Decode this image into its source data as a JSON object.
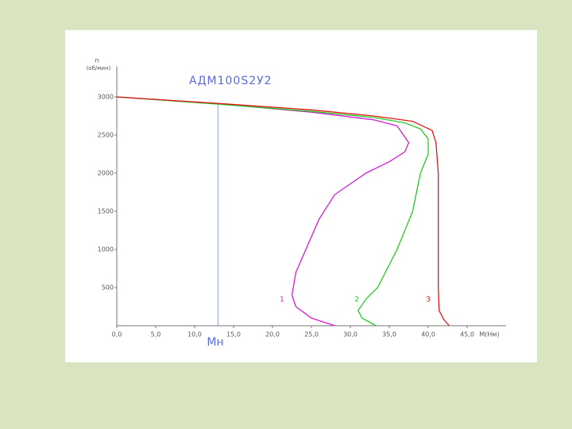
{
  "chart_data": {
    "type": "line",
    "title": "АДМ100S2У2",
    "ylabel": "n",
    "ylabel_unit": "(об/мин)",
    "xlabel": "M(Нм)",
    "xlim": [
      0,
      50
    ],
    "ylim": [
      0,
      3400
    ],
    "xticks": [
      {
        "value": 0,
        "label": "0,0"
      },
      {
        "value": 5,
        "label": "5,0"
      },
      {
        "value": 10,
        "label": "10,0"
      },
      {
        "value": 15,
        "label": "15,0"
      },
      {
        "value": 20,
        "label": "20,0"
      },
      {
        "value": 25,
        "label": "25,0"
      },
      {
        "value": 30,
        "label": "30,0"
      },
      {
        "value": 35,
        "label": "35,0"
      },
      {
        "value": 40,
        "label": "40,0"
      },
      {
        "value": 45,
        "label": "45,0"
      }
    ],
    "yticks": [
      500,
      1000,
      1500,
      2000,
      2500,
      3000
    ],
    "annotations": [
      {
        "text": "Мн",
        "x": 13
      }
    ],
    "series": [
      {
        "name": "1",
        "color": "#d21ed2",
        "x": [
          0,
          13,
          25,
          33,
          36,
          37.5,
          37,
          35,
          32,
          28,
          26,
          24.5,
          23,
          22.5,
          23,
          25,
          28
        ],
        "values": [
          3000,
          2910,
          2800,
          2700,
          2620,
          2400,
          2280,
          2150,
          2000,
          1720,
          1400,
          1050,
          700,
          400,
          250,
          100,
          0
        ]
      },
      {
        "name": "2",
        "color": "#22cc22",
        "x": [
          0,
          13,
          25,
          33,
          37,
          39,
          40,
          40,
          39,
          38,
          36,
          33.5,
          32,
          31,
          31.5,
          33.3
        ],
        "values": [
          3000,
          2905,
          2810,
          2730,
          2660,
          2580,
          2450,
          2250,
          2000,
          1500,
          1000,
          500,
          350,
          200,
          100,
          0
        ]
      },
      {
        "name": "3",
        "color": "#e01515",
        "x": [
          0,
          13,
          25,
          33,
          38,
          40.5,
          41,
          41.3,
          41.3,
          41.3,
          41.3,
          41.4,
          42,
          42.7
        ],
        "values": [
          3000,
          2915,
          2830,
          2750,
          2680,
          2560,
          2400,
          2000,
          1500,
          1000,
          500,
          200,
          80,
          0
        ]
      }
    ]
  }
}
